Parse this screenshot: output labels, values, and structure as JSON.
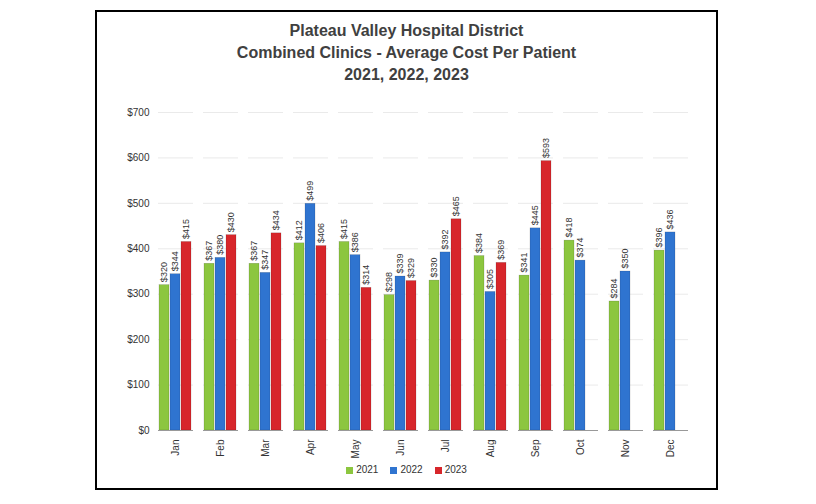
{
  "chart_data": {
    "type": "bar",
    "title": "Plateau Valley Hospital District\nCombined Clinics  - Average Cost Per Patient\n2021, 2022, 2023",
    "categories": [
      "Jan",
      "Feb",
      "Mar",
      "Apr",
      "May",
      "Jun",
      "Jul",
      "Aug",
      "Sep",
      "Oct",
      "Nov",
      "Dec"
    ],
    "series": [
      {
        "name": "2021",
        "color": "#8cc63f",
        "values": [
          320,
          367,
          367,
          412,
          415,
          298,
          330,
          384,
          341,
          418,
          284,
          396
        ],
        "value_labels": [
          "$320",
          "$367",
          "$367",
          "$412",
          "$415",
          "$298",
          "$330",
          "$384",
          "$341",
          "$418",
          "$284",
          "$396"
        ]
      },
      {
        "name": "2022",
        "color": "#2f74d0",
        "values": [
          344,
          380,
          347,
          499,
          386,
          339,
          392,
          305,
          445,
          374,
          350,
          436
        ],
        "value_labels": [
          "$344",
          "$380",
          "$347",
          "$499",
          "$386",
          "$339",
          "$392",
          "$305",
          "$445",
          "$374",
          "$350",
          "$436"
        ]
      },
      {
        "name": "2023",
        "color": "#d7262b",
        "values": [
          415,
          430,
          434,
          406,
          314,
          329,
          465,
          369,
          593,
          null,
          null,
          null
        ],
        "value_labels": [
          "$415",
          "$430",
          "$434",
          "$406",
          "$314",
          "$329",
          "$465",
          "$369",
          "$593",
          null,
          null,
          null
        ]
      }
    ],
    "ylim": [
      0,
      700
    ],
    "yticks": [
      {
        "value": 0,
        "label": "$0"
      },
      {
        "value": 100,
        "label": "$100"
      },
      {
        "value": 200,
        "label": "$200"
      },
      {
        "value": 300,
        "label": "$300"
      },
      {
        "value": 400,
        "label": "$400"
      },
      {
        "value": 500,
        "label": "$500"
      },
      {
        "value": 600,
        "label": "$600"
      },
      {
        "value": 700,
        "label": "$700"
      }
    ],
    "grid": true,
    "legend": "bottom",
    "data_labels": true
  }
}
